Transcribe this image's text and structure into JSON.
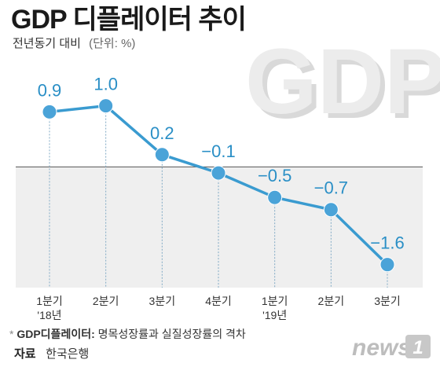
{
  "header": {
    "title": "GDP 디플레이터 추이",
    "subtitle": "전년동기 대비",
    "unit": "(단위: %)"
  },
  "decoration": {
    "big_text": "GDP",
    "logo": "news",
    "logo_mark": "1"
  },
  "footnote": {
    "marker": "*",
    "term": "GDP디플레이터:",
    "definition": "명목성장률과 실질성장률의 격차"
  },
  "source": {
    "label": "자료",
    "value": "한국은행"
  },
  "colors": {
    "line": "#3a9bd0",
    "point": "#4aa3d8",
    "negative_band": "#efefef"
  },
  "chart_data": {
    "type": "line",
    "title": "GDP 디플레이터 추이",
    "subtitle": "전년동기 대비 (단위: %)",
    "categories": [
      [
        "1분기",
        "'18년"
      ],
      [
        "2분기",
        ""
      ],
      [
        "3분기",
        ""
      ],
      [
        "4분기",
        ""
      ],
      [
        "1분기",
        "'19년"
      ],
      [
        "2분기",
        ""
      ],
      [
        "3분기",
        ""
      ]
    ],
    "values": [
      0.9,
      1.0,
      0.2,
      -0.1,
      -0.5,
      -0.7,
      -1.6
    ],
    "value_labels": [
      "0.9",
      "1.0",
      "0.2",
      "−0.1",
      "−0.5",
      "−0.7",
      "−1.6"
    ],
    "ylim": [
      -1.9,
      1.6
    ],
    "zero_line": true,
    "grid": false,
    "legend": "none"
  }
}
